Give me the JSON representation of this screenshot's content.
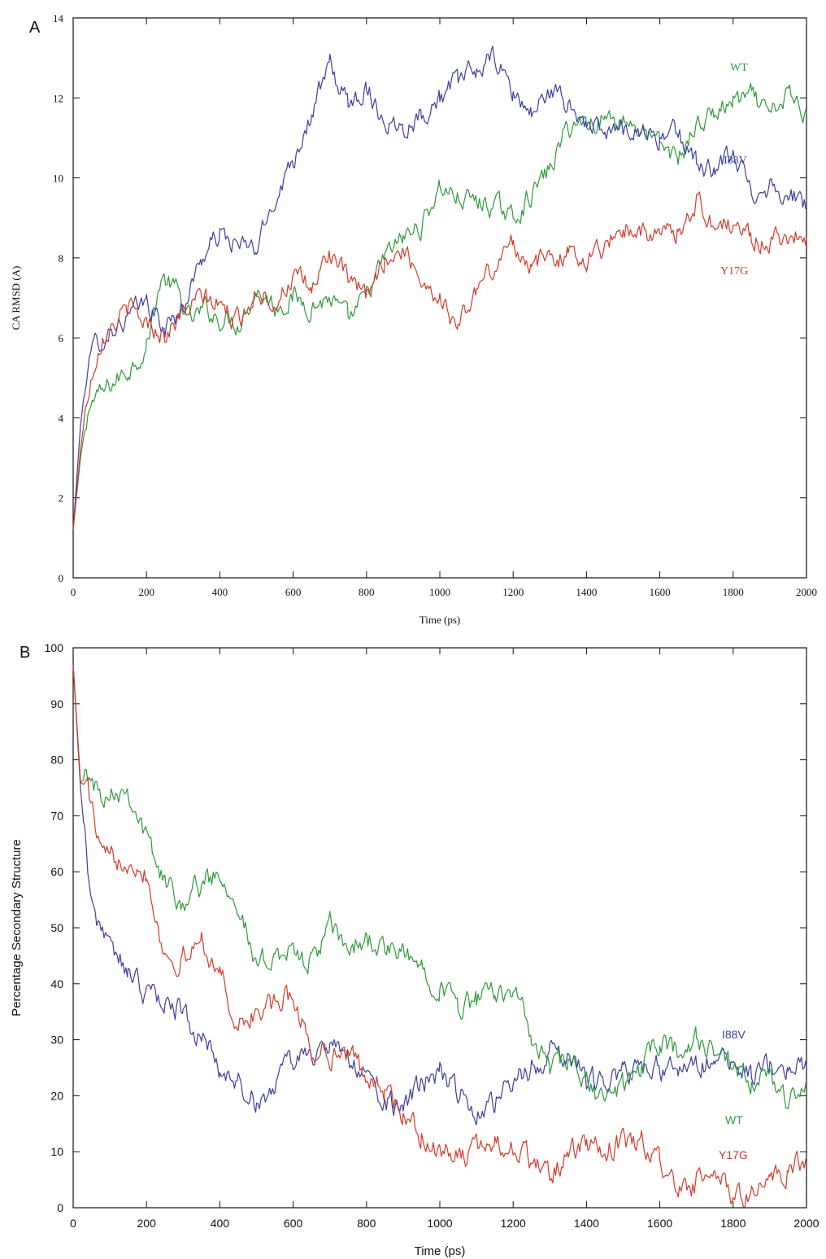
{
  "chart_data": [
    {
      "panel": "A",
      "type": "line",
      "title": "",
      "xlabel": "Time (ps)",
      "ylabel": "CA RMSD (A)",
      "xlim": [
        0,
        2000
      ],
      "ylim": [
        0,
        14
      ],
      "xticks": [
        0,
        200,
        400,
        600,
        800,
        1000,
        1200,
        1400,
        1600,
        1800,
        2000
      ],
      "yticks": [
        0,
        2,
        4,
        6,
        8,
        10,
        12,
        14
      ],
      "grid": false,
      "legend": "inline labels at right",
      "series": [
        {
          "name": "WT",
          "color": "#2e9a3a",
          "x": [
            0,
            20,
            40,
            60,
            80,
            100,
            150,
            200,
            240,
            280,
            320,
            360,
            400,
            450,
            500,
            550,
            600,
            650,
            700,
            750,
            800,
            850,
            900,
            950,
            1000,
            1050,
            1100,
            1150,
            1200,
            1250,
            1300,
            1350,
            1400,
            1450,
            1500,
            1550,
            1600,
            1650,
            1700,
            1750,
            1800,
            1850,
            1900,
            1950,
            2000
          ],
          "y": [
            1.2,
            3.0,
            4.2,
            4.5,
            4.6,
            4.8,
            5.2,
            5.8,
            7.5,
            7.2,
            6.4,
            6.7,
            6.5,
            6.4,
            7.2,
            6.8,
            7.0,
            6.8,
            7.0,
            6.4,
            7.0,
            8.0,
            8.5,
            8.8,
            9.8,
            9.5,
            9.4,
            9.3,
            9.0,
            9.6,
            10.2,
            11.3,
            11.4,
            11.5,
            11.5,
            11.2,
            10.8,
            10.5,
            11.3,
            11.6,
            11.9,
            12.0,
            11.5,
            12.1,
            11.6
          ]
        },
        {
          "name": "I88V",
          "color": "#3b3fa0",
          "x": [
            0,
            20,
            40,
            60,
            80,
            100,
            150,
            200,
            250,
            300,
            350,
            400,
            450,
            500,
            550,
            600,
            650,
            700,
            750,
            800,
            850,
            900,
            950,
            1000,
            1050,
            1100,
            1150,
            1200,
            1250,
            1300,
            1350,
            1400,
            1450,
            1500,
            1550,
            1600,
            1650,
            1700,
            1750,
            1800,
            1850,
            1900,
            1950,
            2000
          ],
          "y": [
            1.2,
            3.8,
            5.4,
            5.8,
            6.0,
            6.2,
            6.5,
            6.9,
            6.2,
            6.8,
            8.0,
            8.6,
            8.3,
            8.2,
            9.5,
            10.5,
            11.6,
            12.8,
            11.8,
            12.3,
            11.4,
            11.3,
            11.6,
            12.0,
            12.4,
            12.7,
            13.0,
            12.1,
            11.6,
            12.2,
            11.8,
            11.4,
            11.0,
            11.3,
            11.2,
            11.0,
            11.1,
            10.4,
            10.1,
            10.6,
            9.7,
            9.8,
            9.6,
            9.3
          ]
        },
        {
          "name": "Y17G",
          "color": "#d63a2a",
          "x": [
            0,
            20,
            40,
            60,
            80,
            100,
            150,
            200,
            250,
            300,
            350,
            400,
            450,
            500,
            550,
            600,
            650,
            700,
            750,
            800,
            850,
            900,
            950,
            1000,
            1050,
            1100,
            1150,
            1200,
            1250,
            1300,
            1350,
            1400,
            1450,
            1500,
            1550,
            1600,
            1650,
            1700,
            1750,
            1800,
            1850,
            1900,
            1950,
            2000
          ],
          "y": [
            1.2,
            3.2,
            4.6,
            5.5,
            6.1,
            6.3,
            6.7,
            6.4,
            6.1,
            6.6,
            7.0,
            6.8,
            6.4,
            7.2,
            6.9,
            7.5,
            7.2,
            8.2,
            7.4,
            7.0,
            8.0,
            8.2,
            7.5,
            7.0,
            6.3,
            7.2,
            7.8,
            8.4,
            7.8,
            8.0,
            8.1,
            8.0,
            8.3,
            8.8,
            8.7,
            8.5,
            8.7,
            9.4,
            8.8,
            8.8,
            8.5,
            8.4,
            8.6,
            8.5
          ]
        }
      ]
    },
    {
      "panel": "B",
      "type": "line",
      "title": "",
      "xlabel": "Time (ps)",
      "ylabel": "Percentage Secondary Structure",
      "xlim": [
        0,
        2000
      ],
      "ylim": [
        0,
        100
      ],
      "xticks": [
        0,
        200,
        400,
        600,
        800,
        1000,
        1200,
        1400,
        1600,
        1800,
        2000
      ],
      "yticks": [
        0,
        10,
        20,
        30,
        40,
        50,
        60,
        70,
        80,
        90,
        100
      ],
      "grid": false,
      "legend": "inline labels at right",
      "series": [
        {
          "name": "I88V",
          "color": "#3b3fa0",
          "x": [
            0,
            20,
            40,
            60,
            80,
            100,
            150,
            200,
            250,
            300,
            350,
            400,
            450,
            500,
            550,
            600,
            650,
            700,
            750,
            800,
            850,
            900,
            950,
            1000,
            1050,
            1100,
            1150,
            1200,
            1250,
            1300,
            1350,
            1400,
            1450,
            1500,
            1550,
            1600,
            1650,
            1700,
            1750,
            1800,
            1850,
            1900,
            1950,
            2000
          ],
          "y": [
            97,
            75,
            60,
            52,
            50,
            46,
            42,
            38,
            37,
            35,
            30,
            25,
            22,
            19,
            22,
            26,
            28,
            28,
            27,
            23,
            19,
            17,
            22,
            24,
            20,
            18,
            19,
            22,
            25,
            27,
            28,
            23,
            22,
            24,
            25,
            25,
            24,
            25,
            26,
            25,
            24,
            25,
            25,
            25
          ]
        },
        {
          "name": "WT",
          "color": "#2e9a3a",
          "x": [
            0,
            20,
            40,
            60,
            80,
            100,
            150,
            200,
            250,
            300,
            350,
            400,
            450,
            500,
            550,
            600,
            650,
            700,
            750,
            800,
            850,
            900,
            950,
            1000,
            1050,
            1100,
            1150,
            1200,
            1250,
            1300,
            1350,
            1400,
            1450,
            1500,
            1550,
            1600,
            1650,
            1700,
            1750,
            1800,
            1850,
            1900,
            1950,
            2000
          ],
          "y": [
            97,
            76,
            77,
            75,
            74,
            75,
            75,
            66,
            58,
            55,
            58,
            60,
            55,
            42,
            46,
            45,
            44,
            50,
            46,
            48,
            46,
            45,
            43,
            40,
            36,
            37,
            38,
            40,
            30,
            25,
            26,
            22,
            19,
            22,
            25,
            30,
            28,
            30,
            28,
            24,
            22,
            23,
            19,
            22
          ]
        },
        {
          "name": "Y17G",
          "color": "#d63a2a",
          "x": [
            0,
            20,
            40,
            60,
            80,
            100,
            150,
            200,
            250,
            300,
            350,
            400,
            450,
            500,
            550,
            600,
            650,
            700,
            750,
            800,
            850,
            900,
            950,
            1000,
            1050,
            1100,
            1150,
            1200,
            1250,
            1300,
            1350,
            1400,
            1450,
            1500,
            1550,
            1600,
            1650,
            1700,
            1750,
            1800,
            1850,
            1900,
            1950,
            2000
          ],
          "y": [
            97,
            76,
            75,
            68,
            62,
            62,
            63,
            60,
            45,
            44,
            48,
            42,
            32,
            35,
            36,
            38,
            28,
            28,
            27,
            24,
            21,
            16,
            13,
            10,
            9,
            10,
            12,
            11,
            8,
            6,
            9,
            11,
            10,
            12,
            11,
            9,
            2,
            4,
            6,
            2,
            3,
            4,
            7,
            9
          ]
        }
      ]
    }
  ]
}
